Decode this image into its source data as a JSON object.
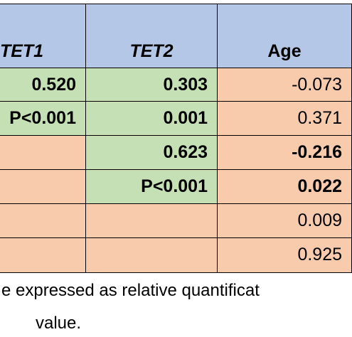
{
  "table": {
    "header": [
      "TET1",
      "TET2",
      "Age"
    ],
    "rows": [
      [
        "0.520",
        "0.303",
        "-0.073"
      ],
      [
        "P<0.001",
        "0.001",
        "0.371"
      ],
      [
        null,
        "0.623",
        "-0.216"
      ],
      [
        null,
        "P<0.001",
        "0.022"
      ],
      [
        null,
        null,
        "0.009"
      ],
      [
        null,
        null,
        "0.925"
      ]
    ]
  },
  "footnote": [
    "e expressed as relative quantificat",
    "value."
  ]
}
